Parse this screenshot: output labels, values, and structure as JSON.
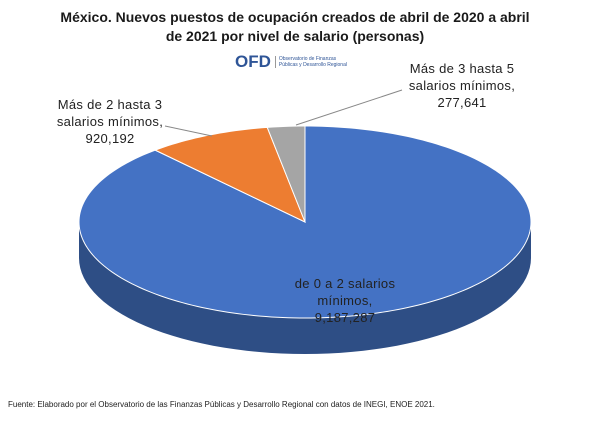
{
  "chart_data": {
    "type": "pie3d",
    "title": "México.  Nuevos puestos de ocupación  creados de abril de 2020 a abril de 2021 por nivel de salario  (personas)",
    "logo": {
      "text": "OFD",
      "name": "Observatorio de Finanzas Públicas y Desarrollo Regional"
    },
    "categories": [
      "de 0 a 2 salarios mínimos,",
      "Más de 2 hasta 3 salarios mínimos,",
      "Más de 3 hasta 5 salarios mínimos,"
    ],
    "values": [
      9187287,
      920192,
      277641
    ],
    "value_labels": [
      "9,187,287",
      "920,192",
      "277,641"
    ],
    "colors": [
      "#4472c4",
      "#ed7d31",
      "#a5a5a5"
    ],
    "source": "Fuente: Elaborado por el Observatorio de las Finanzas Públicas  y Desarrollo Regional con datos de INEGI, ENOE 2021."
  }
}
